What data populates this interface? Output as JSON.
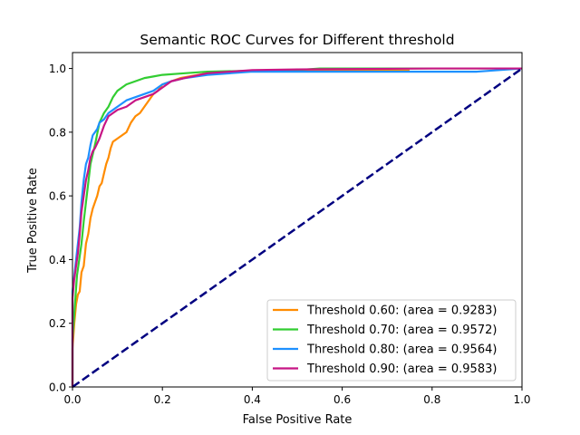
{
  "chart_data": {
    "type": "line",
    "title": "Semantic ROC Curves for Different threshold",
    "xlabel": "False Positive Rate",
    "ylabel": "True Positive Rate",
    "xlim": [
      0.0,
      1.0
    ],
    "ylim": [
      0.0,
      1.05
    ],
    "xticks": [
      0.0,
      0.2,
      0.4,
      0.6,
      0.8,
      1.0
    ],
    "xtick_labels": [
      "0.0",
      "0.2",
      "0.4",
      "0.6",
      "0.8",
      "1.0"
    ],
    "yticks": [
      0.0,
      0.2,
      0.4,
      0.6,
      0.8,
      1.0
    ],
    "ytick_labels": [
      "0.0",
      "0.2",
      "0.4",
      "0.6",
      "0.8",
      "1.0"
    ],
    "grid": false,
    "legend_position": "lower-right",
    "series": [
      {
        "name": "Threshold 0.60: (area = 0.9283)",
        "color": "#ff8c00",
        "x": [
          0.0,
          0.0,
          0.004,
          0.008,
          0.012,
          0.016,
          0.02,
          0.025,
          0.03,
          0.035,
          0.04,
          0.045,
          0.05,
          0.055,
          0.06,
          0.065,
          0.07,
          0.075,
          0.08,
          0.085,
          0.09,
          0.1,
          0.11,
          0.12,
          0.13,
          0.14,
          0.15,
          0.16,
          0.17,
          0.18,
          0.19,
          0.2,
          0.22,
          0.24,
          0.26,
          0.28,
          0.3,
          0.35,
          0.4,
          0.5,
          0.6,
          0.75
        ],
        "y": [
          0.0,
          0.12,
          0.2,
          0.26,
          0.29,
          0.3,
          0.36,
          0.38,
          0.45,
          0.48,
          0.53,
          0.56,
          0.58,
          0.6,
          0.63,
          0.64,
          0.67,
          0.7,
          0.72,
          0.75,
          0.77,
          0.78,
          0.79,
          0.8,
          0.83,
          0.85,
          0.86,
          0.88,
          0.9,
          0.92,
          0.93,
          0.95,
          0.96,
          0.97,
          0.975,
          0.98,
          0.985,
          0.99,
          0.992,
          0.995,
          0.993,
          0.993
        ]
      },
      {
        "name": "Threshold 0.70: (area = 0.9572)",
        "color": "#32cd32",
        "x": [
          0.0,
          0.0,
          0.005,
          0.01,
          0.015,
          0.02,
          0.025,
          0.03,
          0.035,
          0.04,
          0.05,
          0.06,
          0.07,
          0.08,
          0.09,
          0.1,
          0.11,
          0.12,
          0.14,
          0.16,
          0.18,
          0.2,
          0.25,
          0.3,
          0.4,
          0.5,
          0.55,
          0.6,
          0.8,
          1.0
        ],
        "y": [
          0.0,
          0.15,
          0.25,
          0.35,
          0.4,
          0.45,
          0.52,
          0.58,
          0.64,
          0.7,
          0.76,
          0.83,
          0.86,
          0.88,
          0.91,
          0.93,
          0.94,
          0.95,
          0.96,
          0.97,
          0.975,
          0.98,
          0.985,
          0.99,
          0.993,
          0.995,
          1.0,
          1.0,
          1.0,
          1.0
        ]
      },
      {
        "name": "Threshold 0.80: (area = 0.9564)",
        "color": "#1e90ff",
        "x": [
          0.0,
          0.0,
          0.004,
          0.008,
          0.012,
          0.016,
          0.02,
          0.025,
          0.03,
          0.035,
          0.04,
          0.045,
          0.05,
          0.055,
          0.06,
          0.07,
          0.08,
          0.09,
          0.1,
          0.12,
          0.14,
          0.16,
          0.18,
          0.2,
          0.22,
          0.25,
          0.3,
          0.4,
          0.5,
          0.6,
          0.7,
          0.8,
          0.9,
          1.0
        ],
        "y": [
          0.0,
          0.3,
          0.35,
          0.4,
          0.45,
          0.5,
          0.58,
          0.65,
          0.7,
          0.72,
          0.76,
          0.79,
          0.8,
          0.81,
          0.83,
          0.84,
          0.86,
          0.87,
          0.88,
          0.9,
          0.91,
          0.92,
          0.93,
          0.95,
          0.96,
          0.97,
          0.98,
          0.99,
          0.99,
          0.99,
          0.99,
          0.99,
          0.99,
          1.0
        ]
      },
      {
        "name": "Threshold 0.90: (area = 0.9583)",
        "color": "#c71585",
        "x": [
          0.0,
          0.0,
          0.004,
          0.008,
          0.012,
          0.016,
          0.02,
          0.025,
          0.03,
          0.035,
          0.04,
          0.045,
          0.05,
          0.06,
          0.07,
          0.08,
          0.09,
          0.1,
          0.12,
          0.14,
          0.16,
          0.18,
          0.2,
          0.22,
          0.25,
          0.3,
          0.35,
          0.4,
          0.5,
          0.6,
          0.7,
          0.8,
          0.9,
          1.0
        ],
        "y": [
          0.0,
          0.28,
          0.34,
          0.38,
          0.42,
          0.48,
          0.55,
          0.6,
          0.65,
          0.68,
          0.72,
          0.74,
          0.75,
          0.78,
          0.82,
          0.85,
          0.86,
          0.87,
          0.88,
          0.9,
          0.91,
          0.92,
          0.94,
          0.96,
          0.97,
          0.985,
          0.99,
          0.995,
          0.997,
          0.998,
          0.999,
          1.0,
          1.0,
          1.0
        ]
      }
    ],
    "reference_line": {
      "color": "#000080",
      "style": "dashed",
      "x": [
        0.0,
        1.0
      ],
      "y": [
        0.0,
        1.0
      ]
    }
  }
}
